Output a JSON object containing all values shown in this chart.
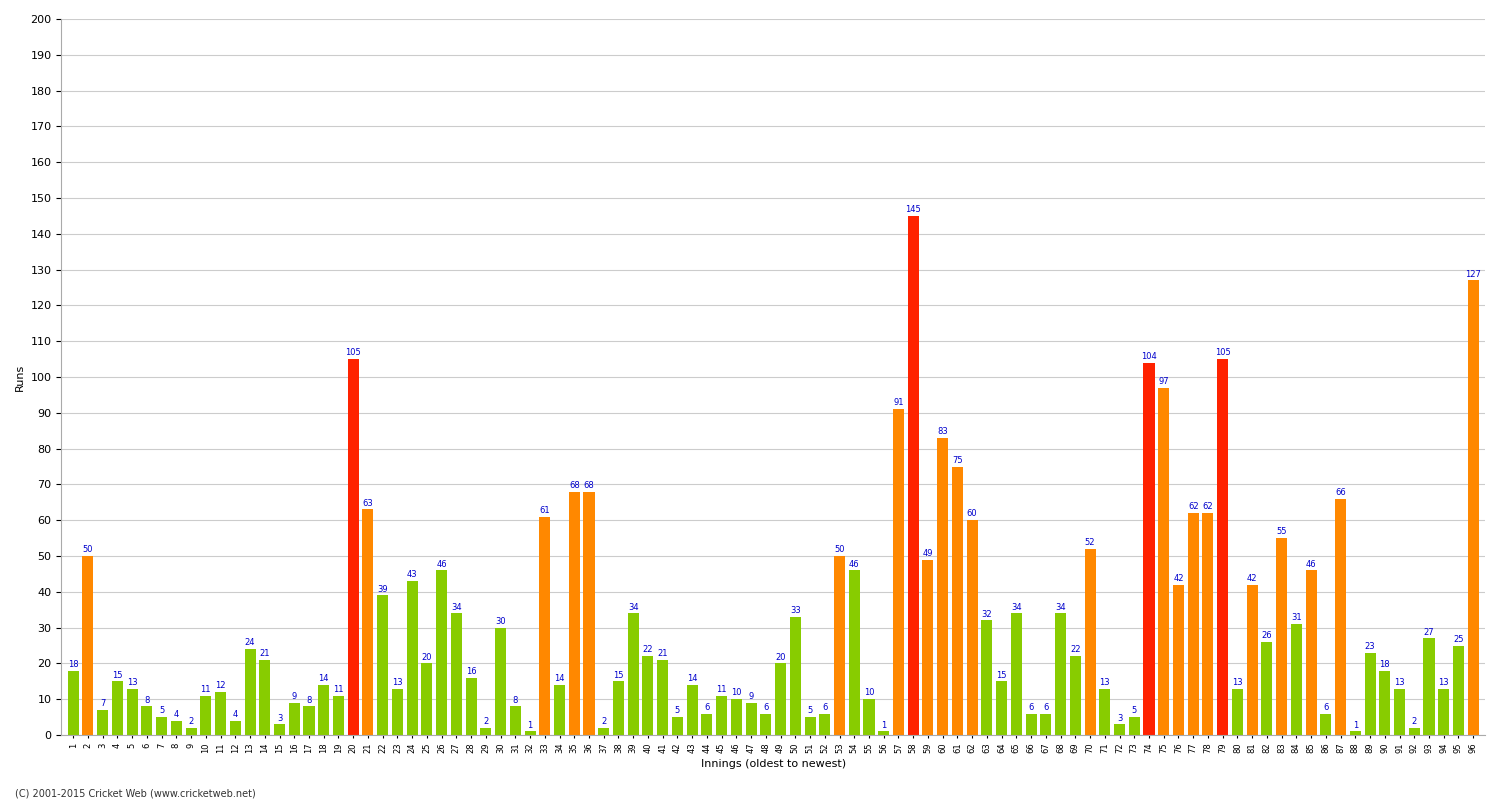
{
  "title": "",
  "xlabel": "Innings (oldest to newest)",
  "ylabel": "Runs",
  "ylim": [
    0,
    200
  ],
  "yticks": [
    0,
    10,
    20,
    30,
    40,
    50,
    60,
    70,
    80,
    90,
    100,
    110,
    120,
    130,
    140,
    150,
    160,
    170,
    180,
    190,
    200
  ],
  "background_color": "#ffffff",
  "grid_color": "#cccccc",
  "innings_labels": [
    "1",
    "2",
    "3",
    "4",
    "5",
    "6",
    "7",
    "8",
    "9",
    "10",
    "11",
    "12",
    "13",
    "14",
    "15",
    "16",
    "17",
    "18",
    "19",
    "20",
    "21",
    "22",
    "23",
    "24",
    "25",
    "26",
    "27",
    "28",
    "29",
    "30",
    "31",
    "32",
    "33",
    "34",
    "35",
    "36",
    "37",
    "38",
    "39",
    "40",
    "41",
    "42",
    "43",
    "44",
    "45",
    "46",
    "47",
    "48",
    "49",
    "50",
    "51",
    "52",
    "53",
    "54",
    "55",
    "56",
    "57",
    "58",
    "59",
    "60",
    "61",
    "62",
    "63",
    "64",
    "65",
    "66",
    "67",
    "68",
    "69",
    "70",
    "71",
    "72",
    "73",
    "74",
    "75",
    "76",
    "77",
    "78",
    "79",
    "80",
    "81",
    "82",
    "83",
    "84",
    "85",
    "86",
    "87",
    "88",
    "89",
    "90",
    "91",
    "92",
    "93",
    "94",
    "95",
    "96"
  ],
  "values": [
    18,
    50,
    7,
    15,
    13,
    8,
    5,
    4,
    2,
    11,
    12,
    4,
    24,
    21,
    3,
    9,
    8,
    14,
    11,
    105,
    63,
    39,
    13,
    43,
    20,
    46,
    34,
    16,
    2,
    30,
    8,
    1,
    61,
    14,
    68,
    68,
    2,
    15,
    34,
    22,
    21,
    5,
    14,
    6,
    11,
    10,
    9,
    6,
    20,
    33,
    5,
    6,
    50,
    46,
    10,
    1,
    91,
    145,
    49,
    83,
    75,
    60,
    32,
    15,
    34,
    6,
    6,
    34,
    22,
    52,
    13,
    3,
    5,
    104,
    97,
    42,
    62,
    62,
    105,
    13,
    42,
    26,
    55,
    31,
    46,
    6,
    66,
    1,
    23,
    18,
    13,
    2,
    27,
    13,
    25,
    127
  ],
  "bar_colors": [
    "green",
    "orange",
    "green",
    "green",
    "green",
    "green",
    "green",
    "green",
    "green",
    "green",
    "green",
    "green",
    "green",
    "green",
    "green",
    "green",
    "green",
    "green",
    "green",
    "red",
    "orange",
    "green",
    "green",
    "green",
    "green",
    "green",
    "green",
    "green",
    "green",
    "green",
    "green",
    "green",
    "orange",
    "green",
    "orange",
    "orange",
    "green",
    "green",
    "green",
    "green",
    "green",
    "green",
    "green",
    "green",
    "green",
    "green",
    "green",
    "green",
    "green",
    "green",
    "green",
    "green",
    "orange",
    "green",
    "green",
    "green",
    "orange",
    "red",
    "orange",
    "orange",
    "orange",
    "orange",
    "green",
    "green",
    "green",
    "green",
    "green",
    "green",
    "green",
    "orange",
    "green",
    "green",
    "green",
    "red",
    "orange",
    "orange",
    "orange",
    "orange",
    "red",
    "green",
    "orange",
    "green",
    "orange",
    "green",
    "orange",
    "green",
    "orange",
    "green",
    "green",
    "green",
    "green",
    "green",
    "green",
    "green",
    "green",
    "orange"
  ],
  "value_color": "#0000cc",
  "value_fontsize": 6.0,
  "bar_width": 0.75,
  "figsize": [
    15,
    8
  ],
  "dpi": 100,
  "footer": "(C) 2001-2015 Cricket Web (www.cricketweb.net)"
}
